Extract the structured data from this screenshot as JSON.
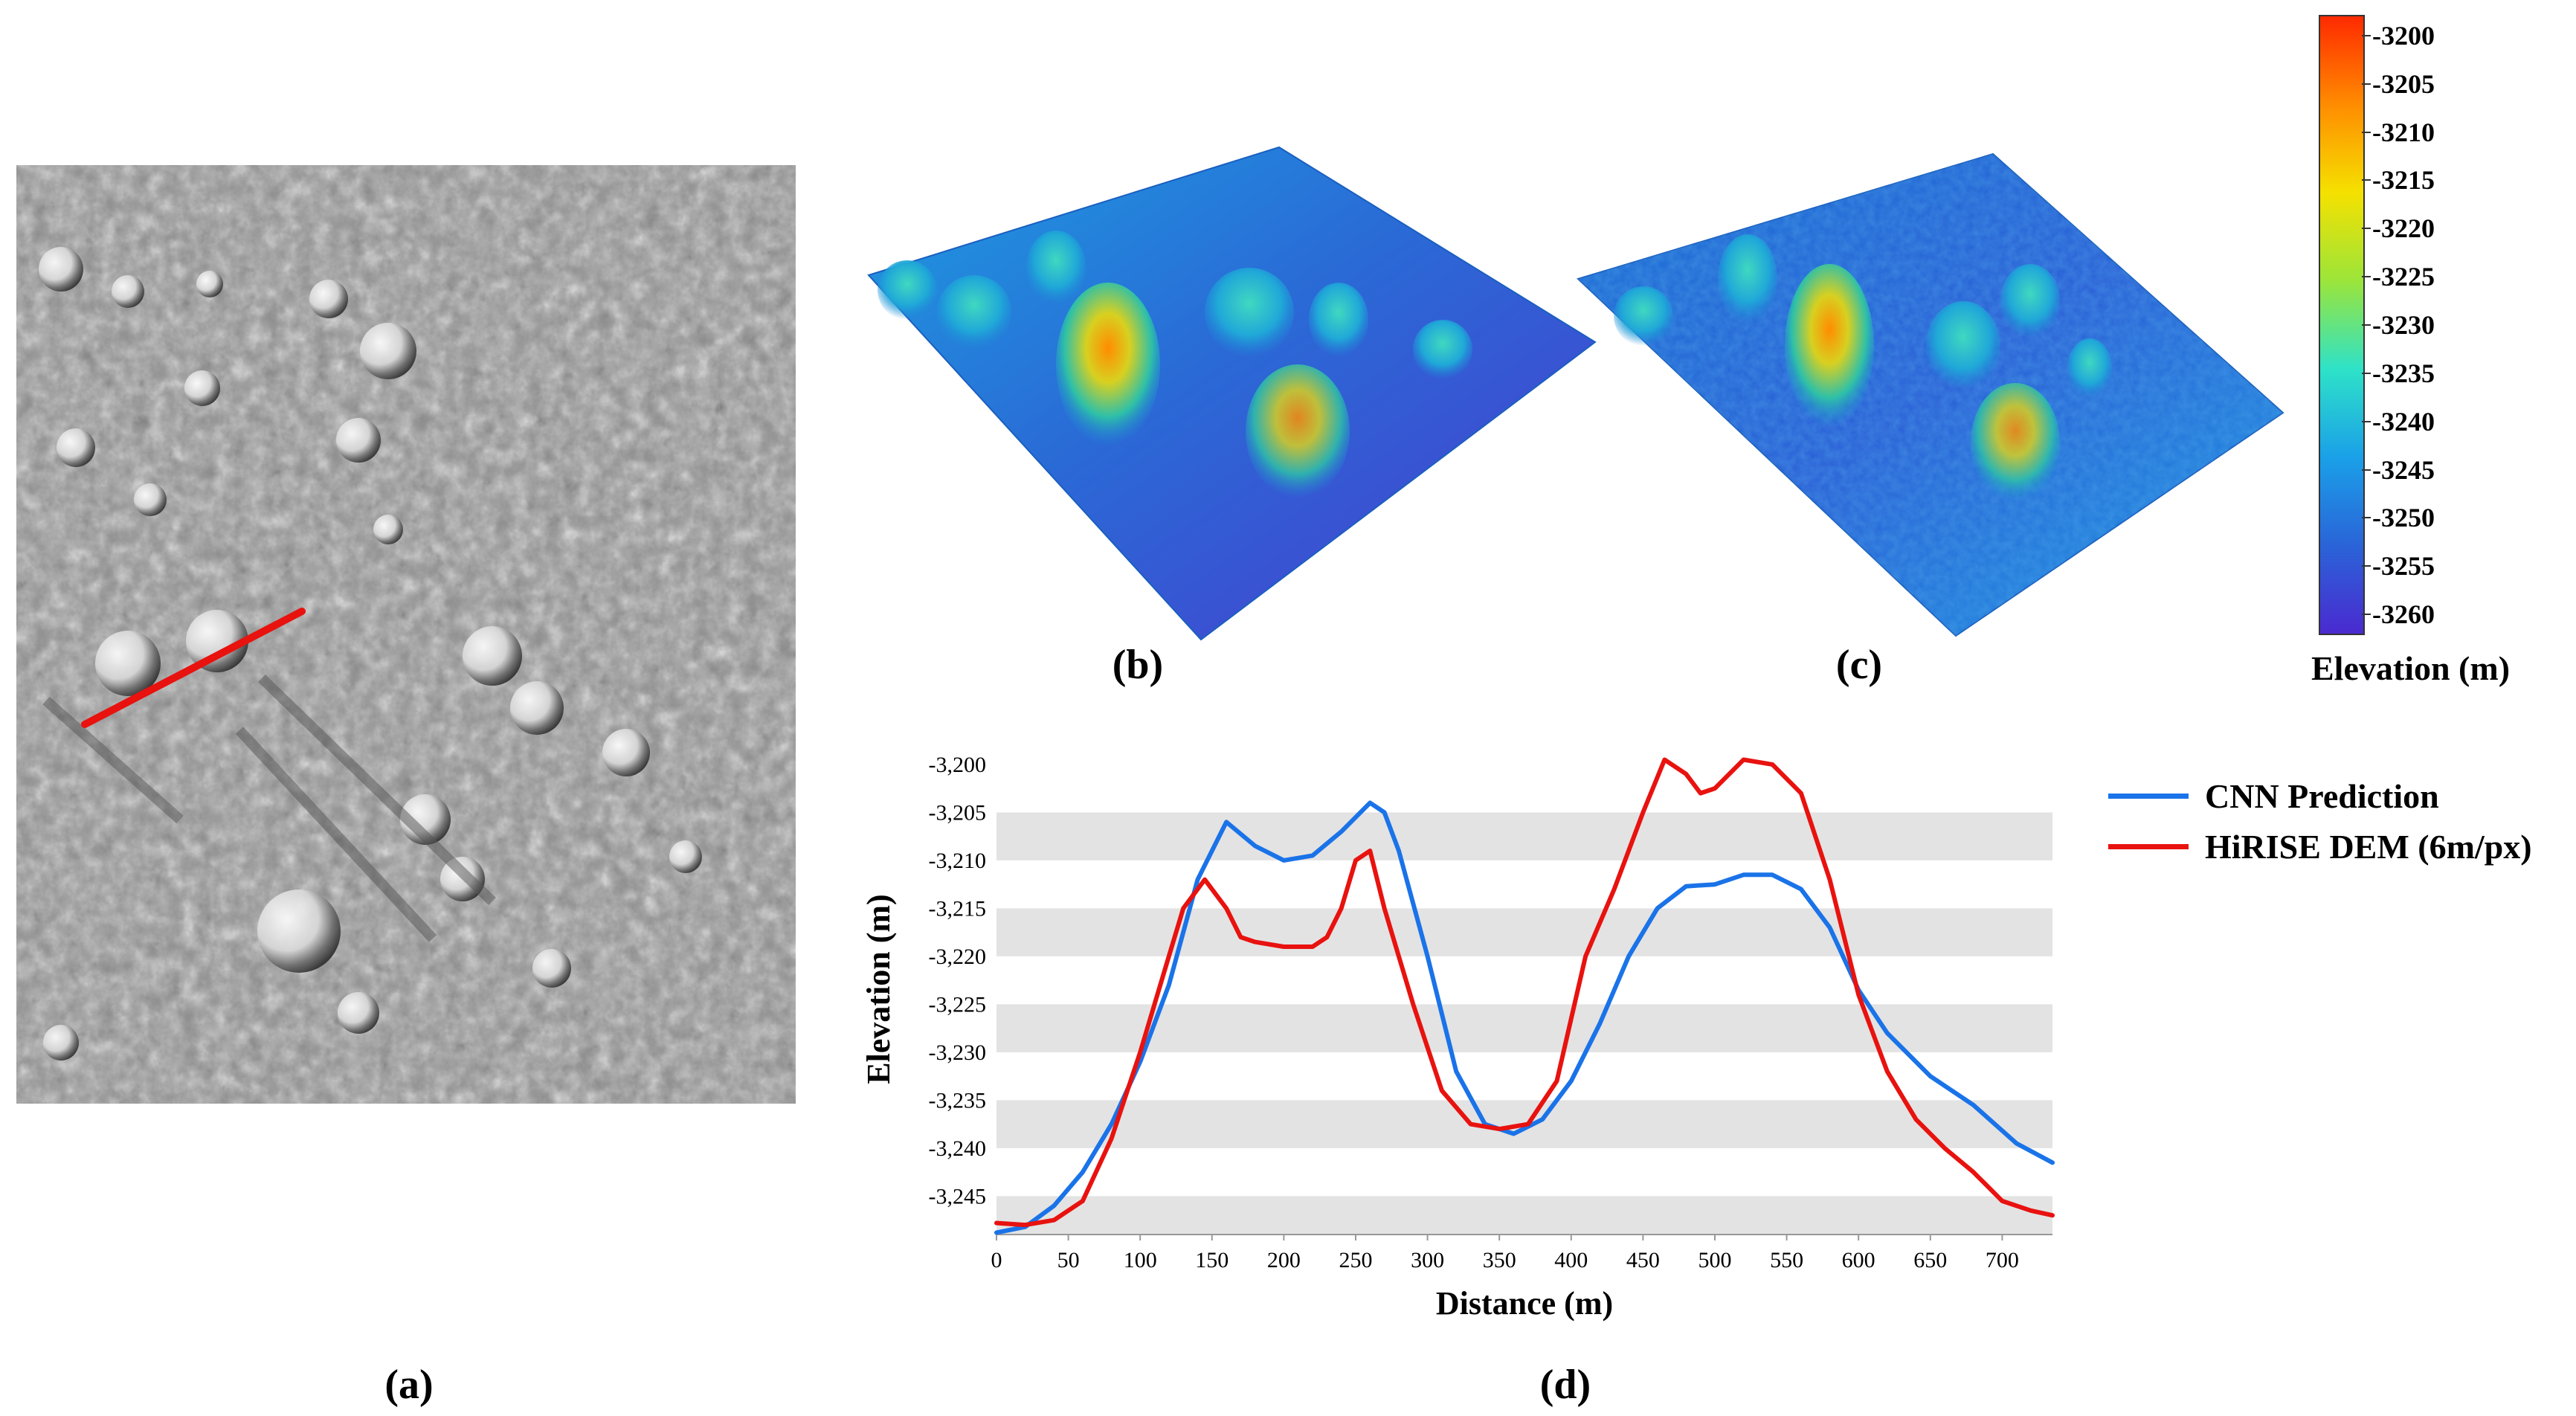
{
  "figure": {
    "labels": {
      "a": "(a)",
      "b": "(b)",
      "c": "(c)",
      "d": "(d)"
    }
  },
  "colorbar": {
    "title": "Elevation (m)",
    "ticks": [
      "-3200",
      "-3205",
      "-3210",
      "-3215",
      "-3220",
      "-3225",
      "-3230",
      "-3235",
      "-3240",
      "-3245",
      "-3250",
      "-3255",
      "-3260"
    ],
    "range": [
      -3262,
      -3198
    ],
    "colors": [
      "#ff2a00",
      "#ff8c00",
      "#f5e100",
      "#9be53a",
      "#2ee2c8",
      "#1aa0e8",
      "#2a64d8",
      "#4a2ad0"
    ]
  },
  "chart_data": {
    "type": "line",
    "xlabel": "Distance (m)",
    "ylabel": "Elevation (m)",
    "xlim": [
      0,
      735
    ],
    "ylim": [
      -3249,
      -3199
    ],
    "x_ticks": [
      0,
      50,
      100,
      150,
      200,
      250,
      300,
      350,
      400,
      450,
      500,
      550,
      600,
      650,
      700
    ],
    "y_ticks": [
      "-3,200",
      "-3,205",
      "-3,210",
      "-3,215",
      "-3,220",
      "-3,225",
      "-3,230",
      "-3,235",
      "-3,240",
      "-3,245"
    ],
    "grid": "alternating horizontal bands",
    "legend": "right",
    "series": [
      {
        "name": "CNN Prediction",
        "color": "#1a73e8",
        "x": [
          0,
          20,
          40,
          60,
          80,
          100,
          120,
          140,
          160,
          180,
          200,
          220,
          240,
          260,
          270,
          280,
          300,
          320,
          340,
          360,
          380,
          400,
          420,
          440,
          460,
          480,
          500,
          520,
          540,
          560,
          580,
          600,
          620,
          650,
          680,
          710,
          735
        ],
        "y": [
          -3248.8,
          -3248.2,
          -3246,
          -3242.5,
          -3237.5,
          -3231,
          -3223,
          -3212,
          -3206,
          -3208.5,
          -3210,
          -3209.5,
          -3207,
          -3204,
          -3205,
          -3209,
          -3220,
          -3232,
          -3237.5,
          -3238.5,
          -3237,
          -3233,
          -3227,
          -3220,
          -3215,
          -3212.7,
          -3212.5,
          -3211.5,
          -3211.5,
          -3213,
          -3217,
          -3223.5,
          -3228,
          -3232.5,
          -3235.5,
          -3239.5,
          -3241.5
        ]
      },
      {
        "name": "HiRISE DEM (6m/px)",
        "color": "#e8120f",
        "x": [
          0,
          20,
          40,
          60,
          80,
          100,
          120,
          130,
          145,
          160,
          170,
          180,
          200,
          220,
          230,
          240,
          250,
          260,
          270,
          290,
          310,
          330,
          350,
          370,
          390,
          410,
          430,
          450,
          465,
          480,
          490,
          500,
          520,
          540,
          560,
          580,
          600,
          620,
          640,
          660,
          680,
          700,
          720,
          735
        ],
        "y": [
          -3247.8,
          -3248,
          -3247.5,
          -3245.5,
          -3239,
          -3230,
          -3220,
          -3215,
          -3212,
          -3215,
          -3218,
          -3218.5,
          -3219,
          -3219,
          -3218,
          -3215,
          -3210,
          -3209,
          -3215,
          -3225,
          -3234,
          -3237.5,
          -3238,
          -3237.5,
          -3233,
          -3220,
          -3213,
          -3205,
          -3199.5,
          -3201,
          -3203,
          -3202.5,
          -3199.5,
          -3200,
          -3203,
          -3212,
          -3224,
          -3232,
          -3237,
          -3240,
          -3242.5,
          -3245.5,
          -3246.5,
          -3247
        ]
      }
    ]
  }
}
